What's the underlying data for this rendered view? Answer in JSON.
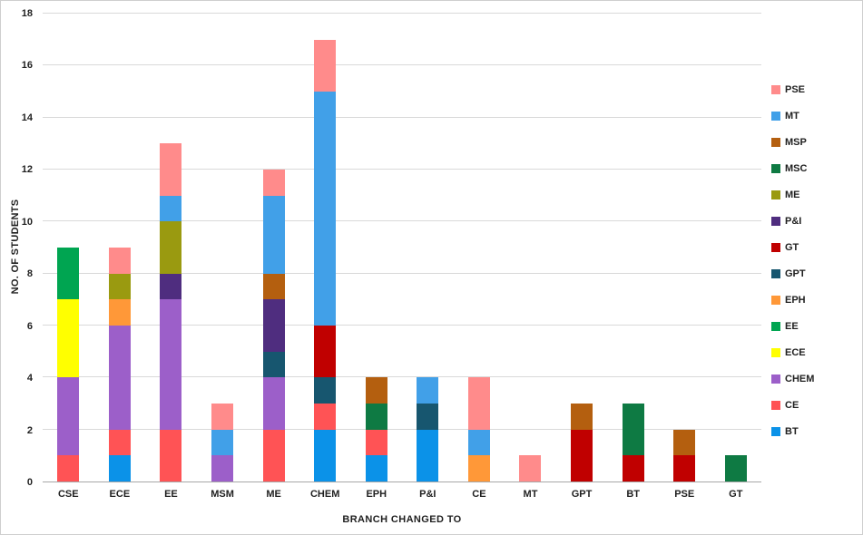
{
  "chart_data": {
    "type": "bar",
    "stacked": true,
    "title": "",
    "xlabel": "BRANCH CHANGED TO",
    "ylabel": "NO. OF STUDENTS",
    "ylim": [
      0,
      18
    ],
    "ytick_step": 2,
    "grid": true,
    "legend_position": "right",
    "legend_order": "reverse",
    "categories": [
      "CSE",
      "ECE",
      "EE",
      "MSM",
      "ME",
      "CHEM",
      "EPH",
      "P&I",
      "CE",
      "MT",
      "GPT",
      "BT",
      "PSE",
      "GT"
    ],
    "series": [
      {
        "name": "BT",
        "color": "#0b92e8",
        "values": [
          0,
          1,
          0,
          0,
          0,
          2,
          1,
          2,
          0,
          0,
          0,
          0,
          0,
          0
        ]
      },
      {
        "name": "CE",
        "color": "#ff5355",
        "values": [
          1,
          1,
          2,
          0,
          2,
          1,
          1,
          0,
          0,
          0,
          0,
          0,
          0,
          0
        ]
      },
      {
        "name": "CHEM",
        "color": "#9c5fc9",
        "values": [
          3,
          4,
          5,
          1,
          2,
          0,
          0,
          0,
          0,
          0,
          0,
          0,
          0,
          0
        ]
      },
      {
        "name": "ECE",
        "color": "#ffff00",
        "values": [
          3,
          0,
          0,
          0,
          0,
          0,
          0,
          0,
          0,
          0,
          0,
          0,
          0,
          0
        ]
      },
      {
        "name": "EE",
        "color": "#00a551",
        "values": [
          2,
          0,
          0,
          0,
          0,
          0,
          0,
          0,
          0,
          0,
          0,
          0,
          0,
          0
        ]
      },
      {
        "name": "EPH",
        "color": "#ff9838",
        "values": [
          0,
          1,
          0,
          0,
          0,
          0,
          0,
          0,
          1,
          0,
          0,
          0,
          0,
          0
        ]
      },
      {
        "name": "GPT",
        "color": "#17566f",
        "values": [
          0,
          0,
          0,
          0,
          1,
          1,
          0,
          1,
          0,
          0,
          0,
          0,
          0,
          0
        ]
      },
      {
        "name": "GT",
        "color": "#c00000",
        "values": [
          0,
          0,
          0,
          0,
          0,
          2,
          0,
          0,
          0,
          0,
          2,
          1,
          1,
          0
        ]
      },
      {
        "name": "P&I",
        "color": "#4f2d7f",
        "values": [
          0,
          0,
          1,
          0,
          2,
          0,
          0,
          0,
          0,
          0,
          0,
          0,
          0,
          0
        ]
      },
      {
        "name": "ME",
        "color": "#9a9a10",
        "values": [
          0,
          1,
          2,
          0,
          0,
          0,
          0,
          0,
          0,
          0,
          0,
          0,
          0,
          0
        ]
      },
      {
        "name": "MSC",
        "color": "#0e7a43",
        "values": [
          0,
          0,
          0,
          0,
          0,
          0,
          1,
          0,
          0,
          0,
          0,
          2,
          0,
          1
        ]
      },
      {
        "name": "MSP",
        "color": "#b45f0f",
        "values": [
          0,
          0,
          0,
          0,
          1,
          0,
          1,
          0,
          0,
          0,
          1,
          0,
          1,
          0
        ]
      },
      {
        "name": "MT",
        "color": "#41a0e8",
        "values": [
          0,
          0,
          1,
          1,
          3,
          9,
          0,
          1,
          1,
          0,
          0,
          0,
          0,
          0
        ]
      },
      {
        "name": "PSE",
        "color": "#ff8b8b",
        "values": [
          0,
          1,
          2,
          1,
          1,
          2,
          0,
          0,
          2,
          1,
          0,
          0,
          0,
          0
        ]
      }
    ],
    "ytick_labels": [
      "0",
      "2",
      "4",
      "6",
      "8",
      "10",
      "12",
      "14",
      "16",
      "18"
    ]
  }
}
